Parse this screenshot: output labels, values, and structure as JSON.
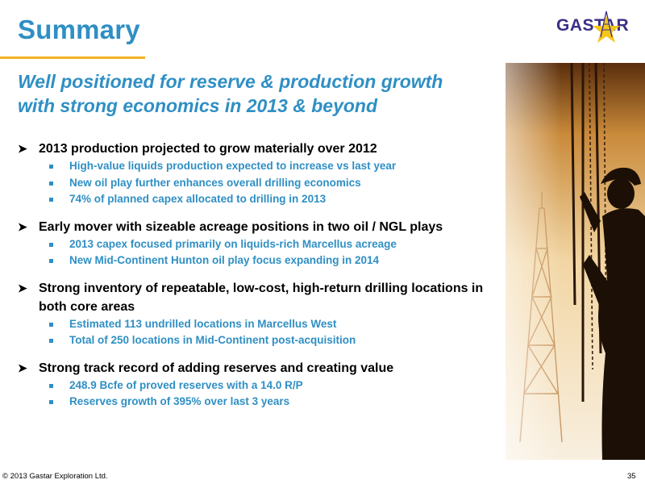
{
  "slide": {
    "title": "Summary",
    "subtitle_line1": "Well positioned for reserve & production growth",
    "subtitle_line2": "with strong economics in 2013 & beyond",
    "logo_text": "GASTAR",
    "footer": "© 2013 Gastar Exploration Ltd.",
    "page_number": "35"
  },
  "bullets": [
    {
      "text": "2013 production projected to grow materially over 2012",
      "subs": [
        "High-value liquids production expected to increase vs last year",
        "New oil play further enhances overall drilling economics",
        "74% of planned capex allocated to drilling in 2013"
      ]
    },
    {
      "text": "Early mover with sizeable acreage positions in two oil / NGL plays",
      "subs": [
        "2013 capex focused primarily on liquids-rich Marcellus acreage",
        "New Mid-Continent Hunton oil play focus expanding in 2014"
      ]
    },
    {
      "text": "Strong inventory of repeatable, low-cost, high-return drilling locations in both core areas",
      "subs": [
        "Estimated 113 undrilled locations in Marcellus West",
        "Total of 250 locations in Mid-Continent post-acquisition"
      ]
    },
    {
      "text": "Strong track record of adding reserves and creating value",
      "subs": [
        "248.9 Bcfe of proved reserves with a 14.0 R/P",
        "Reserves growth of 395% over last 3 years"
      ]
    }
  ],
  "colors": {
    "title": "#2f8fc4",
    "accent_rule": "#f2b225",
    "logo_text": "#3a2f86",
    "logo_star": "#f5c518"
  },
  "icons": {
    "bullet": "arrowhead",
    "sub_bullet": "square",
    "logo": "star-derrick"
  }
}
